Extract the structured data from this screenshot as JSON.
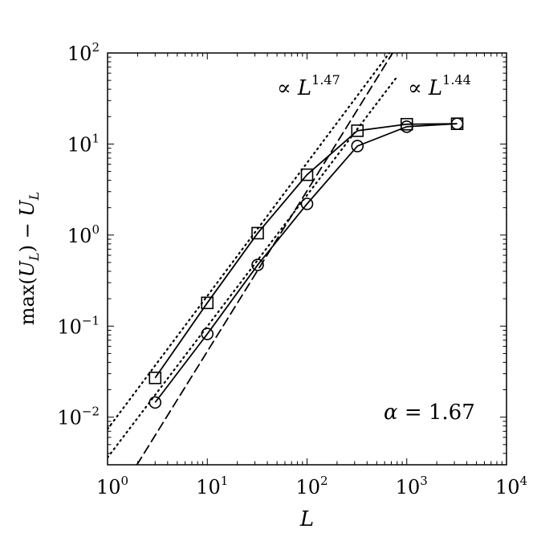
{
  "chart_data": {
    "type": "line",
    "xscale": "log",
    "yscale": "log",
    "xlim": [
      1,
      10000
    ],
    "ylim": [
      0.003,
      100
    ],
    "xlabel": "L",
    "ylabel": "max(U_L) − U_L",
    "x_ticks": [
      {
        "value": 1,
        "base": "10",
        "exp": "0"
      },
      {
        "value": 10,
        "base": "10",
        "exp": "1"
      },
      {
        "value": 100,
        "base": "10",
        "exp": "2"
      },
      {
        "value": 1000,
        "base": "10",
        "exp": "3"
      },
      {
        "value": 10000,
        "base": "10",
        "exp": "4"
      }
    ],
    "y_ticks": [
      {
        "value": 0.01,
        "base": "10",
        "exp": "−2"
      },
      {
        "value": 0.1,
        "base": "10",
        "exp": "−1"
      },
      {
        "value": 1,
        "base": "10",
        "exp": "0"
      },
      {
        "value": 10,
        "base": "10",
        "exp": "1"
      },
      {
        "value": 100,
        "base": "10",
        "exp": "2"
      }
    ],
    "series": [
      {
        "marker": "square",
        "x": [
          3,
          10,
          32,
          100,
          320,
          1000,
          3200
        ],
        "y": [
          0.027,
          0.18,
          1.05,
          4.6,
          14,
          16.5,
          16.7
        ]
      },
      {
        "marker": "circle",
        "x": [
          3,
          10,
          32,
          100,
          320,
          1000,
          3200
        ],
        "y": [
          0.0145,
          0.082,
          0.47,
          2.2,
          9.5,
          15.5,
          16.7
        ]
      }
    ],
    "reference_lines": [
      {
        "style": "dotted",
        "x": [
          1,
          800
        ],
        "y": [
          0.0074,
          130
        ]
      },
      {
        "style": "dotted",
        "x": [
          1,
          800
        ],
        "y": [
          0.0036,
          55
        ]
      },
      {
        "style": "dashed",
        "x": [
          1.97,
          800
        ],
        "y": [
          0.003,
          120
        ]
      }
    ],
    "annotations": [
      {
        "base": "∝ L",
        "exp": "1.47"
      },
      {
        "base": "∝ L",
        "exp": "1.44"
      },
      {
        "base": "α = 1.67",
        "exp": ""
      }
    ],
    "grid": false,
    "legend": "none"
  }
}
